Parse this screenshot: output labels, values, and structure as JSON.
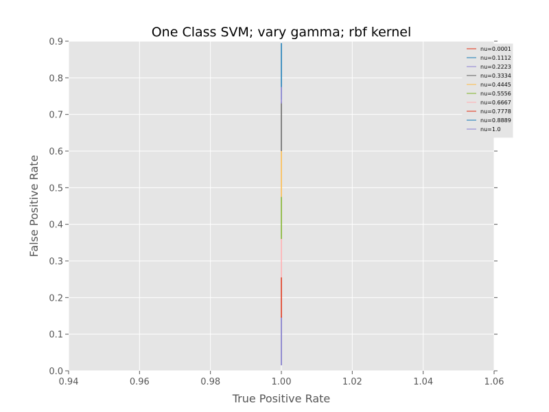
{
  "chart_data": {
    "type": "line",
    "title": "One Class SVM; vary gamma; rbf kernel",
    "xlabel": "True Positive Rate",
    "ylabel": "False Positive Rate",
    "xlim": [
      0.94,
      1.06
    ],
    "ylim": [
      0.0,
      0.9
    ],
    "xticks": [
      "0.94",
      "0.96",
      "0.98",
      "1.00",
      "1.02",
      "1.04",
      "1.06"
    ],
    "yticks": [
      "0.0",
      "0.1",
      "0.2",
      "0.3",
      "0.4",
      "0.5",
      "0.6",
      "0.7",
      "0.8",
      "0.9"
    ],
    "grid": true,
    "background": "#e5e5e5",
    "legend_position": "top-right",
    "series": [
      {
        "name": "nu=0.0001",
        "color": "#e24a33",
        "x": [
          1.0,
          1.0
        ],
        "y": [
          0.015,
          0.14
        ]
      },
      {
        "name": "nu=0.1112",
        "color": "#348abd",
        "x": [
          1.0,
          1.0
        ],
        "y": [
          0.015,
          0.145
        ]
      },
      {
        "name": "nu=0.2223",
        "color": "#988ed5",
        "x": [
          1.0,
          1.0
        ],
        "y": [
          0.015,
          0.15
        ]
      },
      {
        "name": "nu=0.3334",
        "color": "#777777",
        "x": [
          1.0,
          1.0
        ],
        "y": [
          0.6,
          0.735
        ]
      },
      {
        "name": "nu=0.4445",
        "color": "#fbc15e",
        "x": [
          1.0,
          1.0
        ],
        "y": [
          0.475,
          0.6
        ]
      },
      {
        "name": "nu=0.5556",
        "color": "#8eba42",
        "x": [
          1.0,
          1.0
        ],
        "y": [
          0.36,
          0.475
        ]
      },
      {
        "name": "nu=0.6667",
        "color": "#ffb5b8",
        "x": [
          1.0,
          1.0
        ],
        "y": [
          0.255,
          0.36
        ]
      },
      {
        "name": "nu=0.7778",
        "color": "#e24a33",
        "x": [
          1.0,
          1.0
        ],
        "y": [
          0.145,
          0.255
        ]
      },
      {
        "name": "nu=0.8889",
        "color": "#348abd",
        "x": [
          1.0,
          1.0
        ],
        "y": [
          0.74,
          0.895
        ]
      },
      {
        "name": "nu=1.0",
        "color": "#988ed5",
        "x": [
          1.0,
          1.0
        ],
        "y": [
          0.73,
          0.775
        ]
      }
    ]
  }
}
